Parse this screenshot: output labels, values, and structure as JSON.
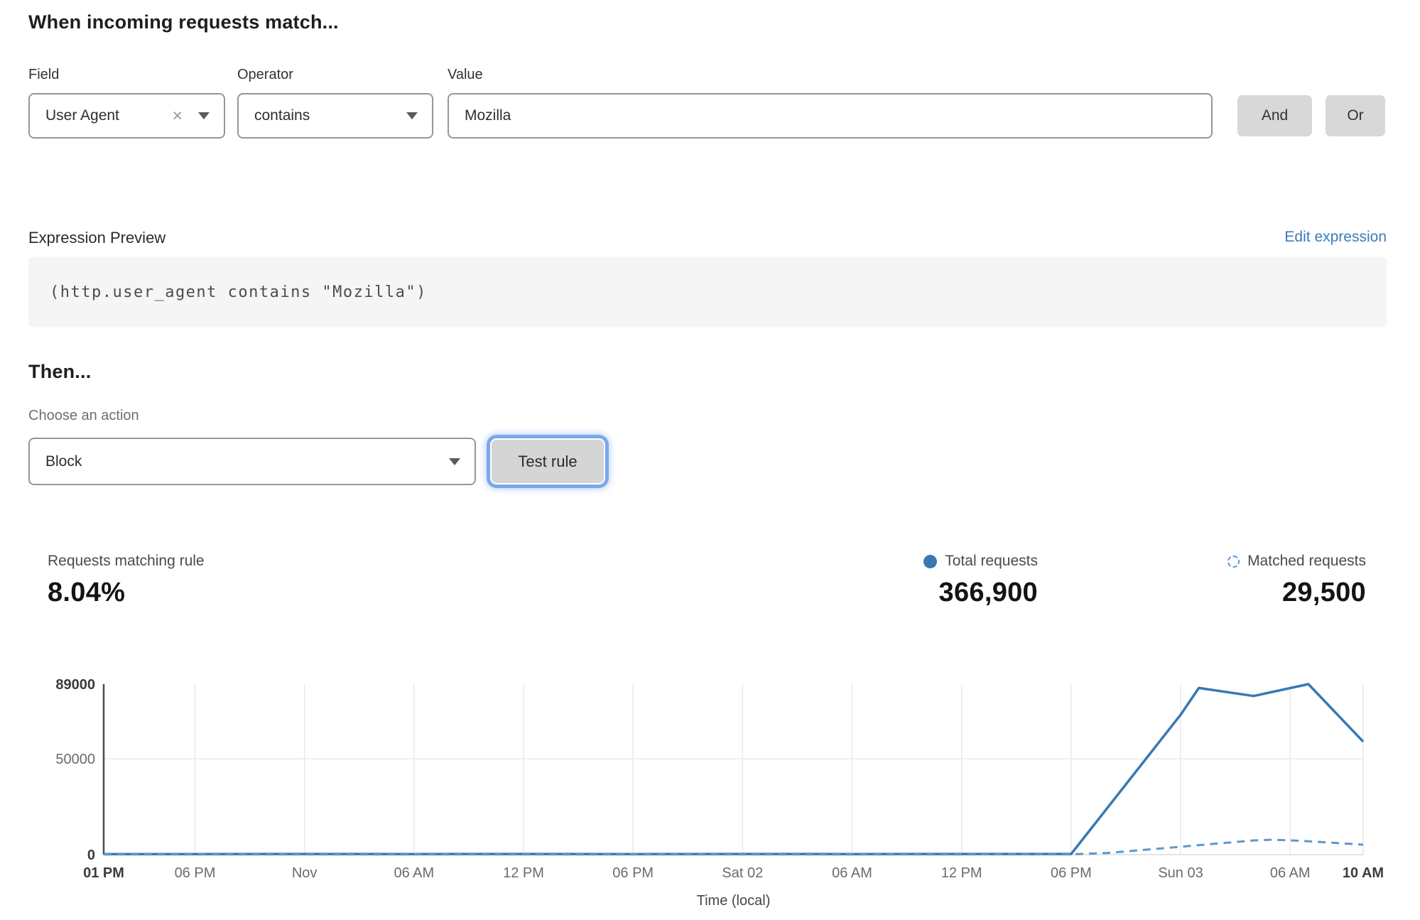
{
  "match_builder": {
    "heading": "When incoming requests match...",
    "field": {
      "label": "Field",
      "value": "User Agent"
    },
    "operator": {
      "label": "Operator",
      "value": "contains"
    },
    "value": {
      "label": "Value",
      "value": "Mozilla"
    },
    "and_label": "And",
    "or_label": "Or"
  },
  "expression": {
    "label": "Expression Preview",
    "edit_link": "Edit expression",
    "code": "(http.user_agent contains \"Mozilla\")"
  },
  "action": {
    "heading": "Then...",
    "label": "Choose an action",
    "value": "Block",
    "test_button": "Test rule"
  },
  "stats": {
    "matching": {
      "label": "Requests matching rule",
      "value": "8.04%"
    },
    "total": {
      "label": "Total requests",
      "value": "366,900"
    },
    "matched": {
      "label": "Matched requests",
      "value": "29,500"
    }
  },
  "icons": {
    "clear": "×",
    "chevron_down": "triangle-down",
    "total_legend": "solid-circle",
    "matched_legend": "dashed-circle"
  },
  "colors": {
    "total_line": "#3878b4",
    "matched_line": "#5d98cd",
    "link": "#3b7cba",
    "gridline": "#e9e9e9",
    "baseline": "#dcdcdc",
    "y_axis": "#4c4c4c",
    "tick_text": "#6b6b6b",
    "tick_text_bold": "#3c3c3c",
    "button_bg": "#d8d8d8",
    "focus_ring": "#7aa9ea",
    "code_bg": "#f5f5f5"
  },
  "chart_data": {
    "type": "line",
    "title": "",
    "xlabel": "Time (local)",
    "ylabel": "",
    "x_unit": "hours after first tick (Thu 01 PM)",
    "x_range_hours": [
      0,
      69
    ],
    "ylim": [
      0,
      89000
    ],
    "grid": true,
    "legend_position": "top-right-above-chart",
    "y_ticks": [
      {
        "value": 0,
        "label": "0",
        "bold": true
      },
      {
        "value": 50000,
        "label": "50000"
      },
      {
        "value": 89000,
        "label": "89000",
        "bold": true
      }
    ],
    "x_ticks": [
      {
        "hour": 0,
        "label": "01 PM",
        "bold": true
      },
      {
        "hour": 5,
        "label": "06 PM"
      },
      {
        "hour": 11,
        "label": "Nov"
      },
      {
        "hour": 17,
        "label": "06 AM"
      },
      {
        "hour": 23,
        "label": "12 PM"
      },
      {
        "hour": 29,
        "label": "06 PM"
      },
      {
        "hour": 35,
        "label": "Sat 02"
      },
      {
        "hour": 41,
        "label": "06 AM"
      },
      {
        "hour": 47,
        "label": "12 PM"
      },
      {
        "hour": 53,
        "label": "06 PM"
      },
      {
        "hour": 59,
        "label": "Sun 03"
      },
      {
        "hour": 65,
        "label": "06 AM"
      },
      {
        "hour": 69,
        "label": "10 AM",
        "bold": true
      }
    ],
    "series": [
      {
        "name": "Total requests",
        "style": "solid",
        "color": "#3878b4",
        "points": [
          [
            0,
            300
          ],
          [
            5,
            300
          ],
          [
            11,
            350
          ],
          [
            17,
            300
          ],
          [
            23,
            350
          ],
          [
            29,
            300
          ],
          [
            35,
            350
          ],
          [
            41,
            300
          ],
          [
            47,
            350
          ],
          [
            53,
            350
          ],
          [
            59,
            73000
          ],
          [
            60,
            87000
          ],
          [
            63,
            82800
          ],
          [
            66,
            89000
          ],
          [
            69,
            59000
          ]
        ]
      },
      {
        "name": "Matched requests",
        "style": "dashed",
        "color": "#5d98cd",
        "points": [
          [
            0,
            100
          ],
          [
            11,
            100
          ],
          [
            23,
            100
          ],
          [
            35,
            100
          ],
          [
            47,
            100
          ],
          [
            53,
            150
          ],
          [
            55,
            900
          ],
          [
            57,
            2500
          ],
          [
            59,
            4100
          ],
          [
            61,
            5800
          ],
          [
            63,
            7400
          ],
          [
            64,
            7800
          ],
          [
            65,
            7500
          ],
          [
            67,
            6400
          ],
          [
            69,
            5200
          ]
        ]
      }
    ]
  }
}
